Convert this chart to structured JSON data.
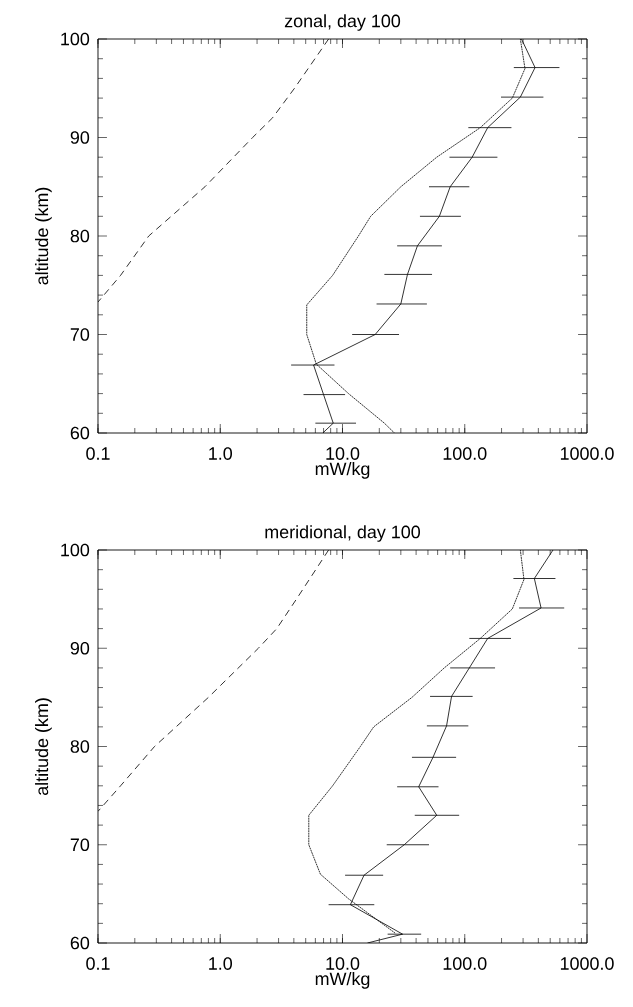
{
  "chart_data": [
    {
      "type": "line",
      "title": "zonal, day 100",
      "xlabel": "mW/kg",
      "ylabel": "altitude (km)",
      "log": "x",
      "marker": "none",
      "xlim": [
        0.1,
        1000
      ],
      "ylim": [
        60,
        100
      ],
      "xticks": [
        {
          "value": 0.1,
          "label": "0.1"
        },
        {
          "value": 1,
          "label": "1.0"
        },
        {
          "value": 10,
          "label": "10.0"
        },
        {
          "value": 100,
          "label": "100.0"
        },
        {
          "value": 1000,
          "label": "1000.0"
        }
      ],
      "yticks": [
        60,
        70,
        80,
        90,
        100
      ],
      "series": [
        {
          "color": "#000000",
          "line_style": "solid",
          "x": [
            291,
            376,
            285,
            154,
            115,
            76,
            62,
            41,
            34,
            30,
            18.5,
            5.8,
            7.0,
            8.4,
            6.9
          ],
          "values": [
            100,
            97.1,
            94.1,
            91,
            88,
            85,
            82,
            79,
            76.1,
            73.1,
            70,
            66.9,
            63.9,
            61,
            60
          ],
          "xerrors": [
            null,
            [
              252,
              595
            ],
            [
              198,
              440
            ],
            [
              107,
              241
            ],
            [
              75,
              185
            ],
            [
              51,
              109
            ],
            [
              43,
              93
            ],
            [
              28,
              65
            ],
            [
              22,
              54
            ],
            [
              19,
              49
            ],
            [
              12,
              29
            ],
            [
              3.8,
              8.6
            ],
            [
              4.8,
              10.5
            ],
            [
              6.0,
              12.9
            ],
            null
          ]
        },
        {
          "color": "#000000",
          "line_style": "dotted",
          "x": [
            285,
            311,
            245,
            134,
            59,
            30,
            17,
            13.5,
            8.3,
            5.1,
            5.1,
            6.1,
            11.2,
            22,
            26.6
          ],
          "values": [
            100,
            97,
            94,
            91,
            88,
            85,
            82,
            80,
            76,
            73,
            70,
            67,
            64,
            61,
            60
          ]
        },
        {
          "color": "#000000",
          "line_style": "dashed",
          "x": [
            7.7,
            4.05,
            2.68,
            1.84,
            0.75,
            0.26,
            0.153,
            0.1
          ],
          "values": [
            100,
            95,
            92,
            90,
            85,
            80,
            76,
            73.3
          ]
        }
      ]
    },
    {
      "type": "line",
      "title": "meridional, day 100",
      "xlabel": "mW/kg",
      "ylabel": "altitude (km)",
      "log": "x",
      "marker": "none",
      "xlim": [
        0.1,
        1000
      ],
      "ylim": [
        60,
        100
      ],
      "xticks": [
        {
          "value": 0.1,
          "label": "0.1"
        },
        {
          "value": 1,
          "label": "1.0"
        },
        {
          "value": 10,
          "label": "10.0"
        },
        {
          "value": 100,
          "label": "100.0"
        },
        {
          "value": 1000,
          "label": "1000.0"
        }
      ],
      "yticks": [
        60,
        70,
        80,
        90,
        100
      ],
      "series": [
        {
          "color": "#000000",
          "line_style": "solid",
          "x": [
            527,
            371,
            421,
            154,
            109,
            78,
            71,
            55,
            42,
            59,
            32,
            15,
            11.6,
            31,
            16
          ],
          "values": [
            100,
            97.1,
            94.1,
            91,
            88,
            85.1,
            82.1,
            78.9,
            75.9,
            73,
            70,
            66.9,
            63.9,
            60.9,
            60
          ],
          "xerrors": [
            null,
            [
              250,
              552
            ],
            [
              278,
              651
            ],
            [
              109,
              239
            ],
            [
              76,
              177
            ],
            [
              52,
              116
            ],
            [
              49,
              107
            ],
            [
              37,
              85
            ],
            [
              28,
              61
            ],
            [
              39,
              90
            ],
            [
              23,
              51
            ],
            [
              10.5,
              21.5
            ],
            [
              7.7,
              18.2
            ],
            [
              23.4,
              44
            ],
            null
          ]
        },
        {
          "color": "#000000",
          "line_style": "dotted",
          "x": [
            285,
            305,
            245,
            134,
            68,
            37,
            18,
            14,
            8.3,
            5.3,
            5.3,
            6.6,
            11.2,
            27
          ],
          "values": [
            100,
            97,
            94,
            91,
            88,
            85,
            82,
            80,
            76,
            73,
            70,
            67,
            64.5,
            61
          ]
        },
        {
          "color": "#000000",
          "line_style": "dashed",
          "x": [
            7.7,
            4.2,
            2.9,
            2.05,
            0.8,
            0.29,
            0.153,
            0.1
          ],
          "values": [
            100,
            95,
            92,
            90,
            85,
            80,
            76,
            73.4
          ]
        }
      ]
    }
  ]
}
